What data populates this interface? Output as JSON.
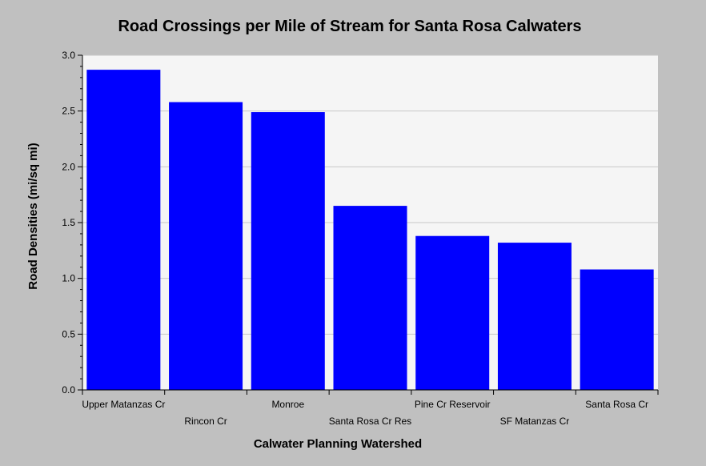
{
  "chart_data": {
    "type": "bar",
    "title": "Road Crossings per Mile of Stream for Santa Rosa Calwaters",
    "xlabel": "Calwater Planning Watershed",
    "ylabel": "Road Densities (mi/sq mi)",
    "categories": [
      "Upper Matanzas Cr",
      "Rincon Cr",
      "Monroe",
      "Santa Rosa Cr Res",
      "Pine Cr Reservoir",
      "SF Matanzas Cr",
      "Santa Rosa Cr"
    ],
    "values": [
      2.87,
      2.58,
      2.49,
      1.65,
      1.38,
      1.32,
      1.08
    ],
    "ylim": [
      0,
      3.0
    ],
    "yticks": [
      "0.0",
      "0.5",
      "1.0",
      "1.5",
      "2.0",
      "2.5",
      "3.0"
    ],
    "grid": true,
    "bar_color": "#0000ff",
    "plot_background": "#f5f5f5",
    "background": "#c0c0c0"
  }
}
